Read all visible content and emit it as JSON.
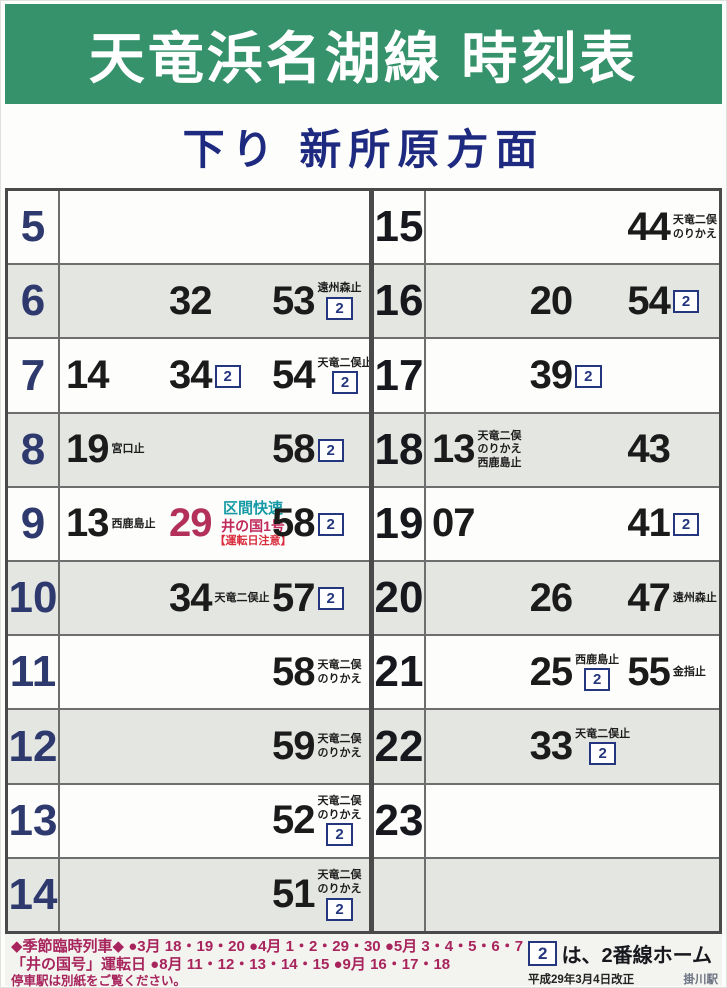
{
  "header": {
    "title": "天竜浜名湖線 時刻表"
  },
  "direction": {
    "label": "下り 新所原方面"
  },
  "timetable": {
    "left": [
      {
        "hour": "5",
        "slots": [
          null,
          null,
          null
        ]
      },
      {
        "hour": "6",
        "slots": [
          null,
          {
            "min": "32"
          },
          {
            "min": "53",
            "tags": [
              {
                "t": "遠州森止"
              }
            ],
            "box2": true
          }
        ]
      },
      {
        "hour": "7",
        "slots": [
          {
            "min": "14"
          },
          {
            "min": "34",
            "box2": true
          },
          {
            "min": "54",
            "tags": [
              {
                "t": "天竜二俣止"
              }
            ],
            "box2": true
          }
        ]
      },
      {
        "hour": "8",
        "slots": [
          {
            "min": "19",
            "tags": [
              {
                "t": "宮口止"
              }
            ]
          },
          null,
          {
            "min": "58",
            "box2": true
          }
        ]
      },
      {
        "hour": "9",
        "slots": [
          {
            "min": "13",
            "tags": [
              {
                "t": "西鹿島止"
              }
            ]
          },
          {
            "min": "29",
            "cls": "red",
            "tags": [
              {
                "t": "区間快速",
                "cls": "teal"
              },
              {
                "t": "井の国1号",
                "cls": "crimson"
              },
              {
                "t": "【運転日注意】",
                "cls": "warn"
              }
            ]
          },
          {
            "min": "58",
            "box2": true
          }
        ]
      },
      {
        "hour": "10",
        "slots": [
          null,
          {
            "min": "34",
            "tags": [
              {
                "t": "天竜二俣止"
              }
            ]
          },
          {
            "min": "57",
            "box2": true
          }
        ]
      },
      {
        "hour": "11",
        "slots": [
          null,
          null,
          {
            "min": "58",
            "tags": [
              {
                "t": "天竜二俣"
              },
              {
                "t": "のりかえ"
              }
            ]
          }
        ]
      },
      {
        "hour": "12",
        "slots": [
          null,
          null,
          {
            "min": "59",
            "tags": [
              {
                "t": "天竜二俣"
              },
              {
                "t": "のりかえ"
              }
            ]
          }
        ]
      },
      {
        "hour": "13",
        "slots": [
          null,
          null,
          {
            "min": "52",
            "tags": [
              {
                "t": "天竜二俣"
              },
              {
                "t": "のりかえ"
              }
            ],
            "box2": true
          }
        ]
      },
      {
        "hour": "14",
        "slots": [
          null,
          null,
          {
            "min": "51",
            "tags": [
              {
                "t": "天竜二俣"
              },
              {
                "t": "のりかえ"
              }
            ],
            "box2": true
          }
        ]
      }
    ],
    "right": [
      {
        "hour": "15",
        "slots": [
          null,
          null,
          {
            "min": "44",
            "tags": [
              {
                "t": "天竜二俣"
              },
              {
                "t": "のりかえ"
              }
            ]
          }
        ]
      },
      {
        "hour": "16",
        "slots": [
          null,
          {
            "min": "20"
          },
          {
            "min": "54",
            "box2": true
          }
        ]
      },
      {
        "hour": "17",
        "slots": [
          null,
          {
            "min": "39",
            "box2": true
          },
          null
        ]
      },
      {
        "hour": "18",
        "slots": [
          {
            "min": "13",
            "tags": [
              {
                "t": "天竜二俣"
              },
              {
                "t": "のりかえ"
              },
              {
                "t": "西鹿島止"
              }
            ]
          },
          null,
          {
            "min": "43"
          }
        ]
      },
      {
        "hour": "19",
        "slots": [
          {
            "min": "07"
          },
          null,
          {
            "min": "41",
            "box2": true
          }
        ]
      },
      {
        "hour": "20",
        "slots": [
          null,
          {
            "min": "26"
          },
          {
            "min": "47",
            "tags": [
              {
                "t": "遠州森止"
              }
            ]
          }
        ]
      },
      {
        "hour": "21",
        "slots": [
          null,
          {
            "min": "25",
            "tags": [
              {
                "t": "西鹿島止"
              }
            ],
            "box2": true
          },
          {
            "min": "55",
            "tags": [
              {
                "t": "金指止"
              }
            ]
          }
        ]
      },
      {
        "hour": "22",
        "slots": [
          null,
          {
            "min": "33",
            "tags": [
              {
                "t": "天竜二俣止"
              }
            ],
            "box2": true
          },
          null
        ]
      },
      {
        "hour": "23",
        "slots": [
          null,
          null,
          null
        ]
      },
      {
        "hour": "",
        "slots": [
          null,
          null,
          null
        ]
      }
    ]
  },
  "notes": {
    "line1": "◆季節臨時列車◆ ●3月 18・19・20 ●4月 1・2・29・30 ●5月 3・4・5・6・7",
    "line2": "「井の国号」運転日 ●8月 11・12・13・14・15 ●9月 16・17・18",
    "line3": "停車駅は別紙をご覧ください。"
  },
  "legend": {
    "badge": "2",
    "text": "は、2番線ホーム",
    "revision": "平成29年3月4日改正",
    "station": "掛川駅"
  },
  "colors": {
    "header_green": "#35926b",
    "direction_navy": "#1e2a80",
    "hour_navy": "#2e3a6e",
    "platform_badge_navy": "#24367d",
    "special_crimson": "#b3305a",
    "rapid_teal": "#169aa5",
    "warning_red": "#d92b3c",
    "notes_crimson": "#a8245c",
    "row_shade_gray": "#e4e6e1"
  }
}
